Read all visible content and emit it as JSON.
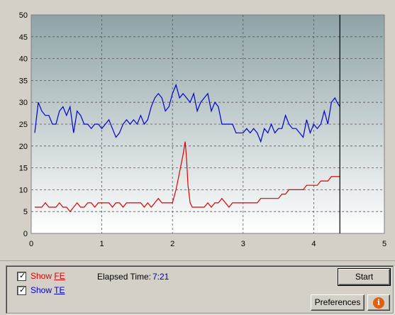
{
  "controls": {
    "show_fe_label": "Show ",
    "show_fe_key": "FE",
    "show_te_label": "Show ",
    "show_te_key": "TE",
    "show_fe_checked": true,
    "show_te_checked": true,
    "elapsed_label": "Elapsed Time:",
    "elapsed_value": "7:21",
    "start_label": "Start",
    "preferences_label": "Preferences",
    "info_icon": "info-icon",
    "info_glyph": "i"
  },
  "colors": {
    "fe": "#e00000",
    "te": "#0000d0",
    "plot_top": "#8fa3a6",
    "plot_bottom": "#ffffff"
  },
  "chart_data": {
    "type": "line",
    "x_range": [
      0,
      5
    ],
    "y_range": [
      0,
      50
    ],
    "x_ticks": [
      "0",
      "1",
      "2",
      "3",
      "4",
      "5"
    ],
    "y_ticks": [
      "0",
      "5",
      "10",
      "15",
      "20",
      "25",
      "30",
      "35",
      "40",
      "45",
      "50"
    ],
    "grid": true,
    "cursor_x": 4.37,
    "series": [
      {
        "name": "TE",
        "color": "#0000d0",
        "x": [
          0.05,
          0.1,
          0.15,
          0.2,
          0.25,
          0.3,
          0.35,
          0.4,
          0.45,
          0.5,
          0.55,
          0.6,
          0.65,
          0.7,
          0.75,
          0.8,
          0.85,
          0.9,
          0.95,
          1.0,
          1.05,
          1.1,
          1.15,
          1.2,
          1.25,
          1.3,
          1.35,
          1.4,
          1.45,
          1.5,
          1.55,
          1.6,
          1.65,
          1.7,
          1.75,
          1.8,
          1.85,
          1.9,
          1.95,
          2.0,
          2.05,
          2.1,
          2.15,
          2.2,
          2.25,
          2.3,
          2.35,
          2.4,
          2.45,
          2.5,
          2.55,
          2.6,
          2.65,
          2.7,
          2.75,
          2.8,
          2.85,
          2.9,
          2.95,
          3.0,
          3.05,
          3.1,
          3.15,
          3.2,
          3.25,
          3.3,
          3.35,
          3.4,
          3.45,
          3.5,
          3.55,
          3.6,
          3.65,
          3.7,
          3.75,
          3.8,
          3.85,
          3.9,
          3.95,
          4.0,
          4.05,
          4.1,
          4.15,
          4.2,
          4.25,
          4.3,
          4.33,
          4.37
        ],
        "y": [
          23,
          30,
          28,
          27,
          27,
          25,
          25,
          28,
          29,
          27,
          29,
          23,
          28,
          27,
          25,
          25,
          24,
          25,
          25,
          24,
          25,
          26,
          24,
          22,
          23,
          25,
          26,
          25,
          26,
          25,
          27,
          25,
          26,
          29,
          31,
          32,
          31,
          28,
          29,
          32,
          34,
          31,
          32,
          31,
          30,
          32,
          28,
          30,
          31,
          32,
          28,
          30,
          29,
          25,
          25,
          25,
          25,
          23,
          23,
          23,
          24,
          23,
          24,
          23,
          21,
          24,
          23,
          25,
          23,
          24,
          24,
          27,
          25,
          24,
          24,
          23,
          22,
          26,
          23,
          25,
          24,
          25,
          28,
          25,
          30,
          31,
          30,
          29
        ]
      },
      {
        "name": "FE",
        "color": "#e00000",
        "x": [
          0.05,
          0.1,
          0.15,
          0.2,
          0.25,
          0.3,
          0.35,
          0.4,
          0.45,
          0.5,
          0.55,
          0.6,
          0.65,
          0.7,
          0.75,
          0.8,
          0.85,
          0.9,
          0.95,
          1.0,
          1.05,
          1.1,
          1.15,
          1.2,
          1.25,
          1.3,
          1.35,
          1.4,
          1.45,
          1.5,
          1.55,
          1.6,
          1.65,
          1.7,
          1.75,
          1.8,
          1.85,
          1.9,
          1.95,
          2.0,
          2.05,
          2.1,
          2.15,
          2.18,
          2.2,
          2.22,
          2.25,
          2.28,
          2.3,
          2.35,
          2.4,
          2.45,
          2.5,
          2.55,
          2.6,
          2.65,
          2.7,
          2.75,
          2.8,
          2.85,
          2.9,
          2.95,
          3.0,
          3.05,
          3.1,
          3.15,
          3.2,
          3.25,
          3.3,
          3.35,
          3.4,
          3.45,
          3.5,
          3.55,
          3.6,
          3.65,
          3.7,
          3.75,
          3.8,
          3.85,
          3.9,
          3.95,
          4.0,
          4.05,
          4.1,
          4.15,
          4.2,
          4.25,
          4.3,
          4.37
        ],
        "y": [
          6,
          6,
          6,
          7,
          6,
          6,
          6,
          7,
          6,
          6,
          5,
          6,
          7,
          6,
          6,
          7,
          7,
          6,
          7,
          7,
          7,
          7,
          6,
          7,
          7,
          6,
          7,
          7,
          7,
          7,
          7,
          6,
          7,
          6,
          7,
          8,
          7,
          7,
          7,
          7,
          10,
          14,
          18,
          21,
          17,
          11,
          7,
          6,
          6,
          6,
          6,
          6,
          7,
          6,
          7,
          7,
          8,
          7,
          6,
          7,
          7,
          7,
          7,
          7,
          7,
          7,
          7,
          8,
          8,
          8,
          8,
          8,
          8,
          9,
          9,
          10,
          10,
          10,
          10,
          10,
          11,
          11,
          11,
          11,
          12,
          12,
          12,
          13,
          13,
          13
        ]
      }
    ]
  }
}
